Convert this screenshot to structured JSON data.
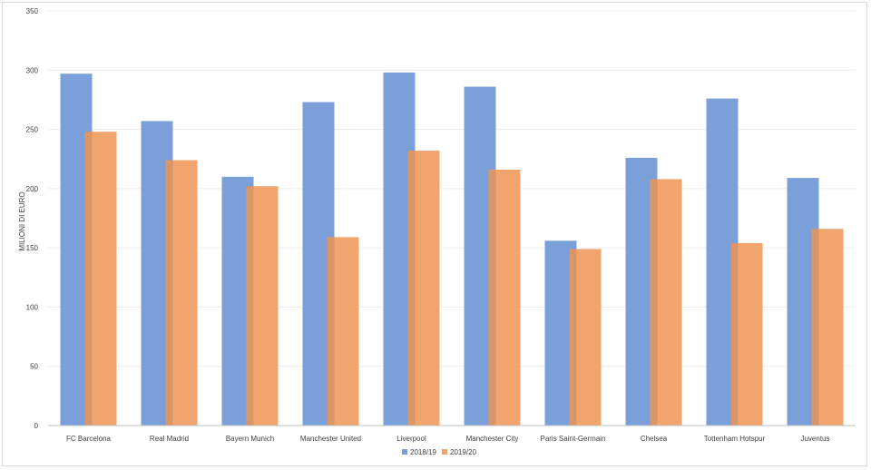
{
  "chart_data": {
    "type": "bar",
    "title": "",
    "xlabel": "",
    "ylabel": "MILIONI DI EURO",
    "ylim": [
      0,
      350
    ],
    "yticks": [
      0,
      50,
      100,
      150,
      200,
      250,
      300,
      350
    ],
    "grid": true,
    "legend_position": "bottom",
    "categories": [
      "FC Barcelona",
      "Real Madrid",
      "Bayern Munich",
      "Manchester United",
      "Liverpool",
      "Manchester City",
      "Paris Saint-Germain",
      "Chelsea",
      "Tottenham Hotspur",
      "Juventus"
    ],
    "series": [
      {
        "name": "2018/19",
        "color": "#7b9fd9",
        "values": [
          297,
          257,
          210,
          273,
          298,
          286,
          156,
          226,
          276,
          209
        ]
      },
      {
        "name": "2019/20",
        "color": "#f2a46e",
        "values": [
          248,
          224,
          202,
          159,
          232,
          216,
          149,
          208,
          154,
          166
        ]
      }
    ]
  }
}
